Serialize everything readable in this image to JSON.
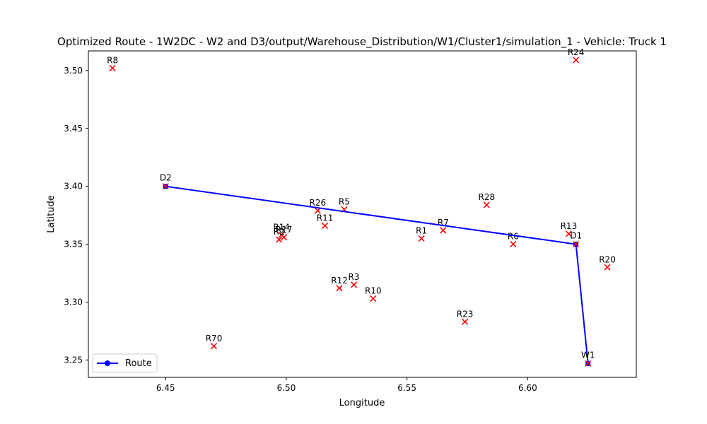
{
  "chart_data": {
    "type": "scatter",
    "title": "Optimized Route - 1W2DC - W2 and D3/output/Warehouse_Distribution/W1/Cluster1/simulation_1 - Vehicle: Truck 1",
    "xlabel": "Longitude",
    "ylabel": "Latitude",
    "xlim": [
      6.418,
      6.645
    ],
    "ylim": [
      3.235,
      3.517
    ],
    "xticks": [
      6.45,
      6.5,
      6.55,
      6.6
    ],
    "xtick_labels": [
      "6.45",
      "6.50",
      "6.55",
      "6.60"
    ],
    "yticks": [
      3.25,
      3.3,
      3.35,
      3.4,
      3.45,
      3.5
    ],
    "ytick_labels": [
      "3.25",
      "3.30",
      "3.35",
      "3.40",
      "3.45",
      "3.50"
    ],
    "grid": false,
    "legend": {
      "entries": [
        "Route"
      ],
      "placement": "lower-left"
    },
    "colors": {
      "route": "#0000ff",
      "points": "#ff0000"
    },
    "route": {
      "name": "Route",
      "points": [
        {
          "label": "D2",
          "x": 6.45,
          "y": 3.4
        },
        {
          "label": "D1",
          "x": 6.62,
          "y": 3.35
        },
        {
          "label": "W1",
          "x": 6.625,
          "y": 3.247
        }
      ]
    },
    "retailers": [
      {
        "label": "R8",
        "x": 6.428,
        "y": 3.502
      },
      {
        "label": "R24",
        "x": 6.62,
        "y": 3.509
      },
      {
        "label": "R26",
        "x": 6.513,
        "y": 3.379
      },
      {
        "label": "R5",
        "x": 6.524,
        "y": 3.38
      },
      {
        "label": "R28",
        "x": 6.583,
        "y": 3.384
      },
      {
        "label": "R11",
        "x": 6.516,
        "y": 3.366
      },
      {
        "label": "R14",
        "x": 6.498,
        "y": 3.358
      },
      {
        "label": "R17",
        "x": 6.499,
        "y": 3.356
      },
      {
        "label": "R2",
        "x": 6.497,
        "y": 3.354
      },
      {
        "label": "R7",
        "x": 6.565,
        "y": 3.362
      },
      {
        "label": "R1",
        "x": 6.556,
        "y": 3.355
      },
      {
        "label": "R13",
        "x": 6.617,
        "y": 3.359
      },
      {
        "label": "R6",
        "x": 6.594,
        "y": 3.35
      },
      {
        "label": "R20",
        "x": 6.633,
        "y": 3.33
      },
      {
        "label": "R12",
        "x": 6.522,
        "y": 3.312
      },
      {
        "label": "R3",
        "x": 6.528,
        "y": 3.315
      },
      {
        "label": "R10",
        "x": 6.536,
        "y": 3.303
      },
      {
        "label": "R23",
        "x": 6.574,
        "y": 3.283
      },
      {
        "label": "R70",
        "x": 6.47,
        "y": 3.262
      }
    ]
  }
}
